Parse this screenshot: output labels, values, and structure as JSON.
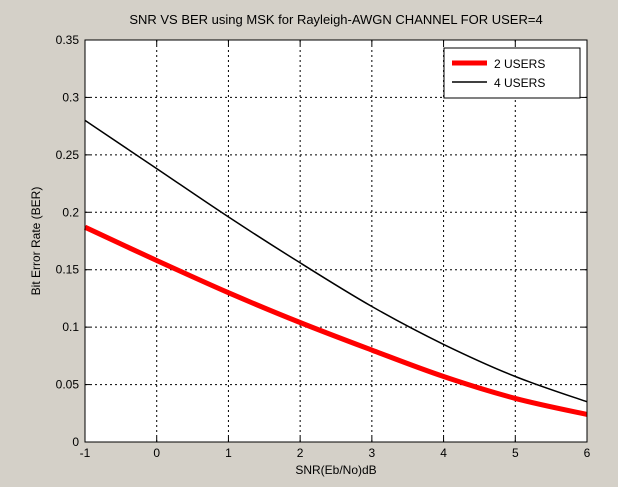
{
  "chart_data": {
    "type": "line",
    "title": "SNR VS BER using MSK for Rayleigh-AWGN CHANNEL FOR USER=4",
    "xlabel": "SNR(Eb/No)dB",
    "ylabel": "Bit Error Rate (BER)",
    "xlim": [
      -1,
      6
    ],
    "ylim": [
      0,
      0.35
    ],
    "xticks": [
      -1,
      0,
      1,
      2,
      3,
      4,
      5,
      6
    ],
    "yticks": [
      0,
      0.05,
      0.1,
      0.15,
      0.2,
      0.25,
      0.3,
      0.35
    ],
    "xtick_labels": [
      "-1",
      "0",
      "1",
      "2",
      "3",
      "4",
      "5",
      "6"
    ],
    "ytick_labels": [
      "0",
      "0.05",
      "0.1",
      "0.15",
      "0.2",
      "0.25",
      "0.3",
      "0.35"
    ],
    "grid": true,
    "grid_style": "dotted",
    "legend_position": "top-right",
    "x": [
      -1,
      0,
      1,
      2,
      3,
      4,
      5,
      6
    ],
    "series": [
      {
        "name": "2 USERS",
        "color": "#ff0000",
        "line_weight": "thick",
        "values": [
          0.187,
          0.158,
          0.13,
          0.104,
          0.08,
          0.057,
          0.038,
          0.024
        ]
      },
      {
        "name": "4 USERS",
        "color": "#000000",
        "line_weight": "thin",
        "values": [
          0.28,
          0.238,
          0.196,
          0.156,
          0.118,
          0.085,
          0.057,
          0.035
        ]
      }
    ]
  },
  "colors": {
    "figure_background": "#d4d0c8",
    "axes_background": "#ffffff"
  }
}
